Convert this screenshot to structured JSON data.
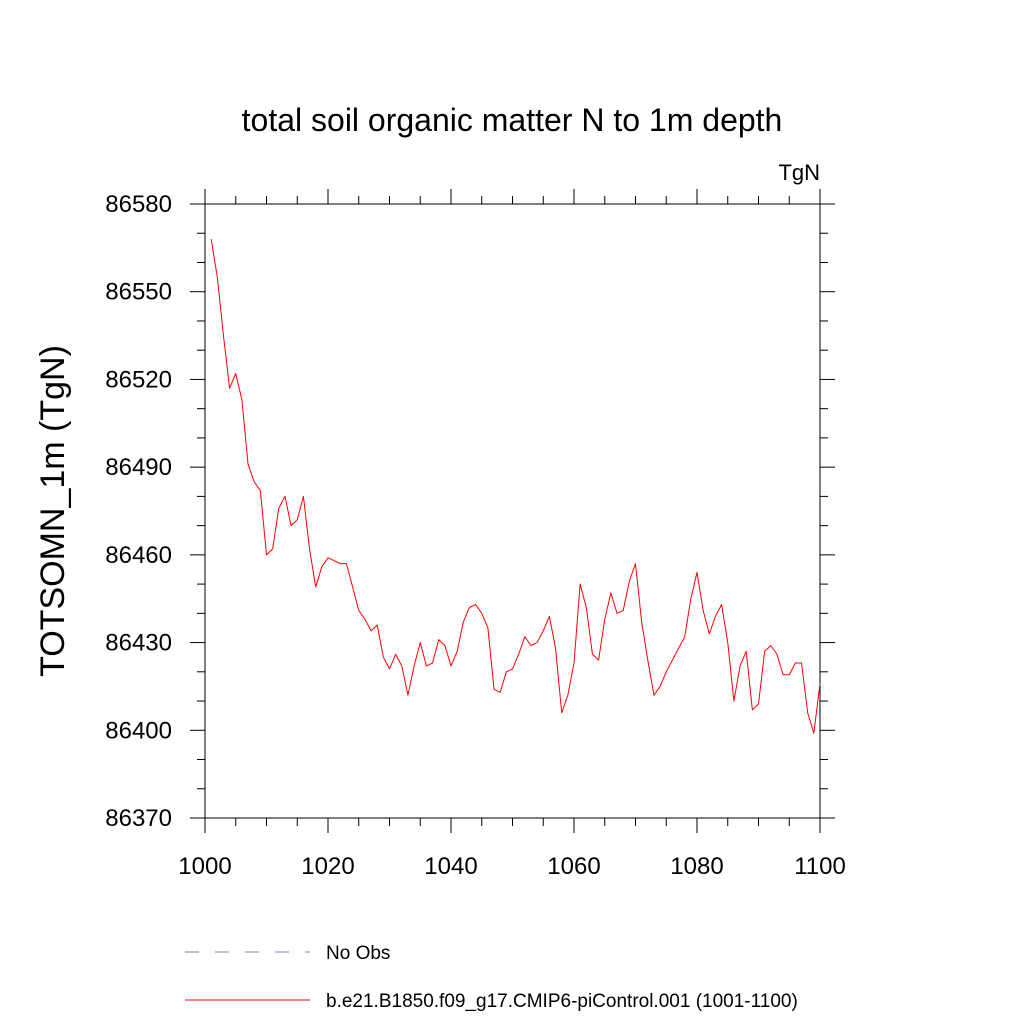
{
  "chart_data": {
    "type": "line",
    "title": "total soil organic matter N to 1m depth",
    "units_label": "TgN",
    "xlabel": "",
    "ylabel": "TOTSOMN_1m  (TgN)",
    "xlim": [
      1000,
      1100
    ],
    "ylim": [
      86370,
      86580
    ],
    "xticks": [
      1000,
      1020,
      1040,
      1060,
      1080,
      1100
    ],
    "yticks": [
      86370,
      86400,
      86430,
      86460,
      86490,
      86520,
      86550,
      86580
    ],
    "x_minor_step": 5,
    "y_minor_step": 10,
    "grid": false,
    "series": [
      {
        "name": "b.e21.B1850.f09_g17.CMIP6-piControl.001 (1001-1100)",
        "color": "#ff0000",
        "style": "solid",
        "x": [
          1001,
          1002,
          1003,
          1004,
          1005,
          1006,
          1007,
          1008,
          1009,
          1010,
          1011,
          1012,
          1013,
          1014,
          1015,
          1016,
          1017,
          1018,
          1019,
          1020,
          1021,
          1022,
          1023,
          1024,
          1025,
          1026,
          1027,
          1028,
          1029,
          1030,
          1031,
          1032,
          1033,
          1034,
          1035,
          1036,
          1037,
          1038,
          1039,
          1040,
          1041,
          1042,
          1043,
          1044,
          1045,
          1046,
          1047,
          1048,
          1049,
          1050,
          1051,
          1052,
          1053,
          1054,
          1055,
          1056,
          1057,
          1058,
          1059,
          1060,
          1061,
          1062,
          1063,
          1064,
          1065,
          1066,
          1067,
          1068,
          1069,
          1070,
          1071,
          1072,
          1073,
          1074,
          1075,
          1076,
          1077,
          1078,
          1079,
          1080,
          1081,
          1082,
          1083,
          1084,
          1085,
          1086,
          1087,
          1088,
          1089,
          1090,
          1091,
          1092,
          1093,
          1094,
          1095,
          1096,
          1097,
          1098,
          1099,
          1100
        ],
        "values": [
          86568,
          86555,
          86535,
          86517,
          86522,
          86513,
          86491,
          86485,
          86482,
          86460,
          86462,
          86476,
          86480,
          86470,
          86472,
          86480,
          86462,
          86449,
          86456,
          86459,
          86458,
          86457,
          86457,
          86449,
          86441,
          86438,
          86434,
          86436,
          86425,
          86421,
          86426,
          86422,
          86412,
          86422,
          86430,
          86422,
          86423,
          86431,
          86429,
          86422,
          86427,
          86437,
          86442,
          86443,
          86440,
          86435,
          86414,
          86413,
          86420,
          86421,
          86426,
          86432,
          86429,
          86430,
          86434,
          86439,
          86428,
          86406,
          86412,
          86423,
          86450,
          86442,
          86426,
          86424,
          86438,
          86447,
          86440,
          86441,
          86451,
          86457,
          86437,
          86424,
          86412,
          86415,
          86420,
          86424,
          86428,
          86432,
          86445,
          86454,
          86441,
          86433,
          86439,
          86443,
          86430,
          86410,
          86422,
          86427,
          86407,
          86409,
          86427,
          86429,
          86426,
          86419,
          86419,
          86423,
          86423,
          86406,
          86399,
          86416
        ]
      },
      {
        "name": "No Obs",
        "color": "#8080c0",
        "style": "dashed",
        "x": [],
        "values": []
      }
    ]
  }
}
